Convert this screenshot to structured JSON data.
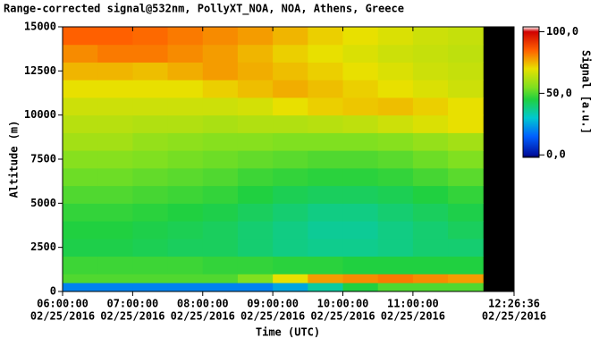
{
  "chart_data": {
    "type": "heatmap",
    "title": "Range-corrected signal@532nm, PollyXT_NOA, NOA, Athens, Greece",
    "x_label": "Time (UTC)",
    "y_label": "Altitude (m)",
    "colorbar_label": "Signal [a.u.]",
    "xlim": [
      6,
      12.4433
    ],
    "ylim": [
      0,
      15000
    ],
    "xticks": [
      {
        "value": 6,
        "label": "06:00:00",
        "date": "02/25/2016"
      },
      {
        "value": 7,
        "label": "07:00:00",
        "date": "02/25/2016"
      },
      {
        "value": 8,
        "label": "08:00:00",
        "date": "02/25/2016"
      },
      {
        "value": 9,
        "label": "09:00:00",
        "date": "02/25/2016"
      },
      {
        "value": 10,
        "label": "10:00:00",
        "date": "02/25/2016"
      },
      {
        "value": 11,
        "label": "11:00:00",
        "date": "02/25/2016"
      },
      {
        "value": 12.4433,
        "label": "12:26:36",
        "date": "02/25/2016"
      }
    ],
    "yticks": [
      0,
      2500,
      5000,
      7500,
      10000,
      12500,
      15000
    ],
    "clim": [
      -2,
      104
    ],
    "cticks": [
      {
        "value": 0,
        "label": "0,0"
      },
      {
        "value": 50,
        "label": "50,0"
      },
      {
        "value": 100,
        "label": "100,0"
      }
    ],
    "colorscale": [
      [
        -2,
        "#000040"
      ],
      [
        0,
        "#0010a0"
      ],
      [
        15,
        "#0060ff"
      ],
      [
        30,
        "#00c8d0"
      ],
      [
        45,
        "#20d040"
      ],
      [
        55,
        "#80e020"
      ],
      [
        70,
        "#e8e000"
      ],
      [
        85,
        "#ff6000"
      ],
      [
        100,
        "#d00000"
      ],
      [
        104,
        "#ffffff"
      ]
    ],
    "x_edges": [
      6,
      6.5,
      7,
      7.5,
      8,
      8.5,
      9,
      9.5,
      10,
      10.5,
      11,
      11.5,
      12
    ],
    "y_edges": [
      0,
      500,
      1000,
      2000,
      3000,
      4000,
      5000,
      6000,
      7000,
      8000,
      9000,
      10000,
      11000,
      12000,
      13000,
      14000,
      15000
    ],
    "z": [
      [
        20,
        20,
        20,
        20,
        20,
        20,
        25,
        35,
        45,
        50,
        50,
        50
      ],
      [
        50,
        50,
        50,
        50,
        50,
        55,
        70,
        78,
        80,
        82,
        80,
        78
      ],
      [
        48,
        48,
        48,
        48,
        47,
        47,
        46,
        46,
        45,
        45,
        45,
        45
      ],
      [
        44,
        44,
        43,
        42,
        42,
        40,
        38,
        37,
        37,
        38,
        40,
        40
      ],
      [
        45,
        45,
        44,
        43,
        42,
        40,
        38,
        36,
        36,
        38,
        40,
        42
      ],
      [
        47,
        47,
        46,
        45,
        44,
        42,
        40,
        38,
        38,
        40,
        42,
        44
      ],
      [
        50,
        50,
        49,
        48,
        47,
        45,
        43,
        42,
        42,
        43,
        45,
        47
      ],
      [
        53,
        53,
        52,
        51,
        50,
        48,
        47,
        46,
        46,
        47,
        49,
        51
      ],
      [
        56,
        56,
        55,
        54,
        53,
        52,
        51,
        50,
        50,
        51,
        53,
        55
      ],
      [
        60,
        60,
        58,
        57,
        56,
        56,
        55,
        55,
        55,
        56,
        58,
        60
      ],
      [
        63,
        63,
        62,
        62,
        61,
        62,
        62,
        63,
        64,
        66,
        68,
        70
      ],
      [
        66,
        66,
        66,
        66,
        66,
        67,
        70,
        72,
        73,
        74,
        72,
        70
      ],
      [
        70,
        70,
        70,
        70,
        72,
        74,
        76,
        74,
        72,
        70,
        68,
        66
      ],
      [
        75,
        75,
        74,
        76,
        78,
        76,
        74,
        72,
        70,
        68,
        66,
        65
      ],
      [
        80,
        82,
        82,
        80,
        78,
        75,
        72,
        70,
        68,
        66,
        65,
        64
      ],
      [
        85,
        85,
        84,
        82,
        80,
        78,
        75,
        72,
        70,
        68,
        66,
        65
      ]
    ]
  }
}
